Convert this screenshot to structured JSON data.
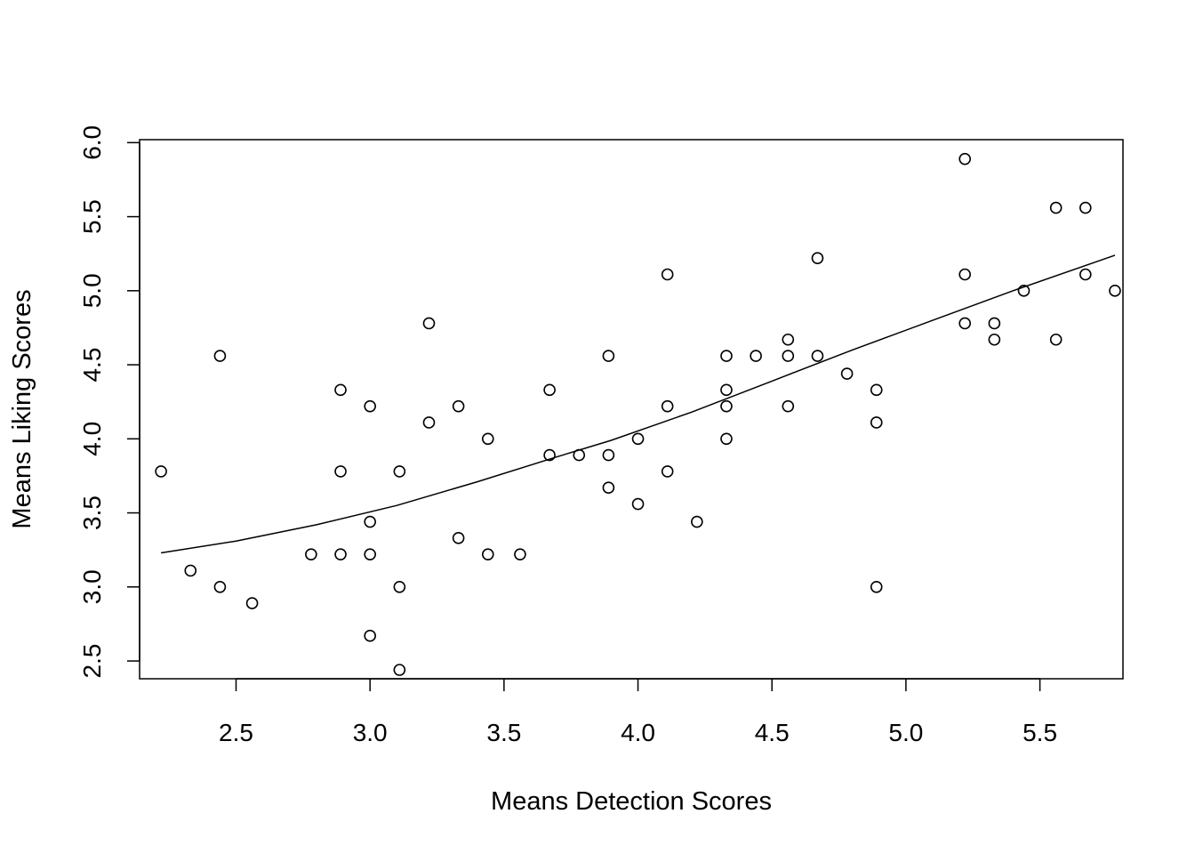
{
  "chart_data": {
    "type": "scatter",
    "title": "",
    "xlabel": "Means Detection Scores",
    "ylabel": "Means Liking Scores",
    "xlim": [
      2.14,
      5.81
    ],
    "ylim": [
      2.38,
      6.02
    ],
    "x_ticks": [
      "2.5",
      "3.0",
      "3.5",
      "4.0",
      "4.5",
      "5.0",
      "5.5"
    ],
    "y_ticks": [
      "2.5",
      "3.0",
      "3.5",
      "4.0",
      "4.5",
      "5.0",
      "5.5",
      "6.0"
    ],
    "grid": false,
    "legend": "none",
    "points": [
      [
        2.22,
        3.78
      ],
      [
        2.33,
        3.11
      ],
      [
        2.44,
        4.56
      ],
      [
        2.44,
        3.0
      ],
      [
        2.56,
        2.89
      ],
      [
        2.78,
        3.22
      ],
      [
        2.89,
        4.33
      ],
      [
        2.89,
        3.78
      ],
      [
        2.89,
        3.22
      ],
      [
        3.0,
        4.22
      ],
      [
        3.0,
        3.44
      ],
      [
        3.0,
        3.22
      ],
      [
        3.0,
        2.67
      ],
      [
        3.11,
        3.78
      ],
      [
        3.11,
        3.0
      ],
      [
        3.11,
        2.44
      ],
      [
        3.22,
        4.78
      ],
      [
        3.22,
        4.11
      ],
      [
        3.33,
        4.22
      ],
      [
        3.33,
        3.33
      ],
      [
        3.44,
        4.0
      ],
      [
        3.44,
        3.22
      ],
      [
        3.56,
        3.22
      ],
      [
        3.67,
        4.33
      ],
      [
        3.67,
        3.89
      ],
      [
        3.78,
        3.89
      ],
      [
        3.89,
        4.56
      ],
      [
        3.89,
        3.89
      ],
      [
        3.89,
        3.67
      ],
      [
        4.0,
        4.0
      ],
      [
        4.0,
        3.56
      ],
      [
        4.11,
        5.11
      ],
      [
        4.11,
        4.22
      ],
      [
        4.11,
        3.78
      ],
      [
        4.22,
        3.44
      ],
      [
        4.33,
        4.56
      ],
      [
        4.33,
        4.33
      ],
      [
        4.33,
        4.22
      ],
      [
        4.33,
        4.0
      ],
      [
        4.44,
        4.56
      ],
      [
        4.56,
        4.67
      ],
      [
        4.56,
        4.56
      ],
      [
        4.56,
        4.22
      ],
      [
        4.67,
        5.22
      ],
      [
        4.67,
        4.56
      ],
      [
        4.78,
        4.44
      ],
      [
        4.89,
        4.33
      ],
      [
        4.89,
        4.11
      ],
      [
        4.89,
        3.0
      ],
      [
        5.22,
        5.89
      ],
      [
        5.22,
        5.11
      ],
      [
        5.22,
        4.78
      ],
      [
        5.33,
        4.78
      ],
      [
        5.33,
        4.67
      ],
      [
        5.44,
        5.0
      ],
      [
        5.56,
        5.56
      ],
      [
        5.56,
        4.67
      ],
      [
        5.67,
        5.56
      ],
      [
        5.67,
        5.11
      ],
      [
        5.78,
        5.0
      ]
    ],
    "trend_line": [
      [
        2.22,
        3.23
      ],
      [
        2.5,
        3.31
      ],
      [
        2.8,
        3.42
      ],
      [
        3.1,
        3.55
      ],
      [
        3.4,
        3.71
      ],
      [
        3.7,
        3.88
      ],
      [
        3.9,
        3.99
      ],
      [
        4.2,
        4.18
      ],
      [
        4.5,
        4.39
      ],
      [
        4.8,
        4.6
      ],
      [
        5.1,
        4.8
      ],
      [
        5.4,
        5.0
      ],
      [
        5.78,
        5.24
      ]
    ]
  }
}
